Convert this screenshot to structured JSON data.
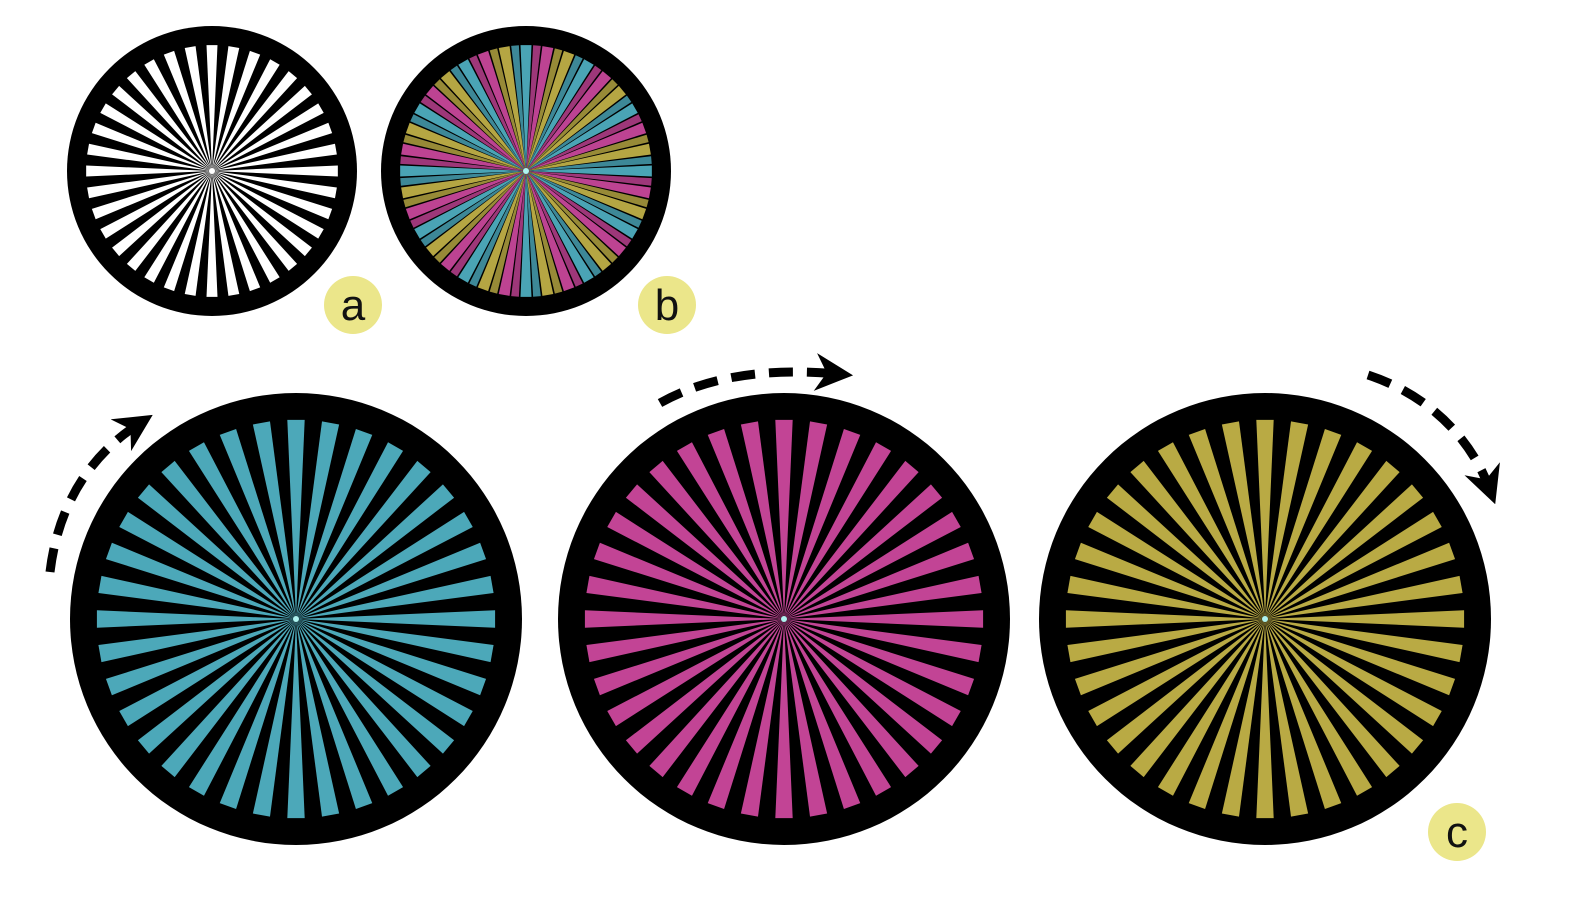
{
  "figure": {
    "panels": [
      {
        "id": "a",
        "label": "a",
        "style": "white",
        "spokes": 36
      },
      {
        "id": "b",
        "label": "b",
        "style": "multicolor",
        "spokes": 36
      },
      {
        "id": "c1",
        "label": "",
        "style": "cyan",
        "spokes": 36,
        "arrow": "left"
      },
      {
        "id": "c2",
        "label": "",
        "style": "magenta",
        "spokes": 36,
        "arrow": "top"
      },
      {
        "id": "c3",
        "label": "c",
        "style": "yellow",
        "spokes": 36,
        "arrow": "right"
      }
    ],
    "colors": {
      "ring": "#000000",
      "white_spoke": "#ffffff",
      "cyan": "#52b6c9",
      "magenta": "#d24aa2",
      "yellow": "#c9b84a",
      "badge": "#ebe68a",
      "arrow": "#000000"
    }
  }
}
